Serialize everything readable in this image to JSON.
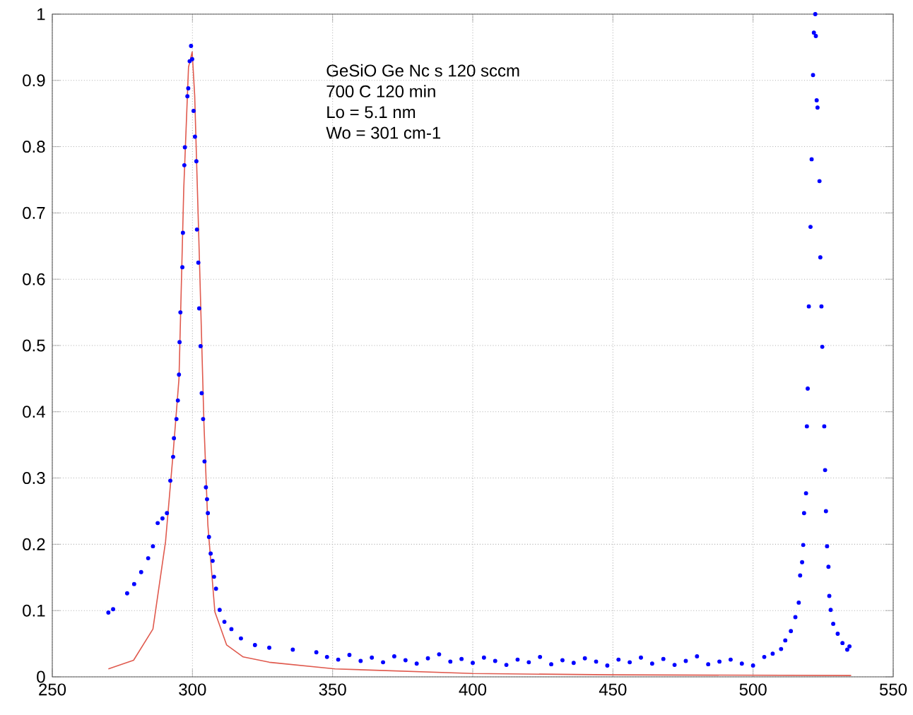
{
  "chart_data": {
    "type": "scatter",
    "annotations": [
      "GeSiO Ge Nc s 120 sccm",
      "700 C 120 min",
      "Lo = 5.1 nm",
      "Wo = 301 cm-1"
    ],
    "series": [
      {
        "color": "#0000ff",
        "marker": "circle",
        "x": [
          270.0,
          271.7,
          276.7,
          279.2,
          281.7,
          284.2,
          285.9,
          287.6,
          289.3,
          290.9,
          292.1,
          293.1,
          293.4,
          294.3,
          294.8,
          295.2,
          295.4,
          295.7,
          296.4,
          296.6,
          297.1,
          297.3,
          298.2,
          298.5,
          299.0,
          299.5,
          299.9,
          300.4,
          300.9,
          301.4,
          301.6,
          302.1,
          302.4,
          302.9,
          303.3,
          303.8,
          304.3,
          304.8,
          305.2,
          305.5,
          305.9,
          306.5,
          307.2,
          307.7,
          308.4,
          309.7,
          311.4,
          313.9,
          317.3,
          322.3,
          327.4,
          335.8,
          344.2,
          348,
          352,
          356,
          360,
          364,
          368,
          372,
          376,
          380,
          384,
          388,
          392,
          396,
          400,
          404,
          408,
          412,
          416,
          420,
          424,
          428,
          432,
          436,
          440,
          444,
          448,
          452,
          456,
          460,
          464,
          468,
          472,
          476,
          480,
          484,
          488,
          492,
          496,
          500,
          504,
          507,
          510,
          511.5,
          513.5,
          515.1,
          516.3,
          516.8,
          517.5,
          517.9,
          518.2,
          518.9,
          519.2,
          519.5,
          519.9,
          520.5,
          520.9,
          521.4,
          521.7,
          522.2,
          522.4,
          522.7,
          523.0,
          523.7,
          524.0,
          524.4,
          524.7,
          525.4,
          525.7,
          526.0,
          526.4,
          526.9,
          527.2,
          527.7,
          528.6,
          530.2,
          531.9,
          533.6,
          534.4
        ],
        "values": [
          0.097,
          0.102,
          0.126,
          0.14,
          0.158,
          0.179,
          0.197,
          0.232,
          0.239,
          0.247,
          0.296,
          0.332,
          0.36,
          0.389,
          0.417,
          0.456,
          0.505,
          0.55,
          0.618,
          0.67,
          0.772,
          0.799,
          0.876,
          0.888,
          0.929,
          0.952,
          0.932,
          0.854,
          0.815,
          0.778,
          0.675,
          0.625,
          0.556,
          0.499,
          0.428,
          0.389,
          0.325,
          0.286,
          0.268,
          0.247,
          0.211,
          0.186,
          0.175,
          0.151,
          0.133,
          0.101,
          0.083,
          0.072,
          0.058,
          0.048,
          0.044,
          0.041,
          0.037,
          0.03,
          0.026,
          0.033,
          0.024,
          0.029,
          0.022,
          0.031,
          0.025,
          0.02,
          0.028,
          0.034,
          0.023,
          0.027,
          0.021,
          0.029,
          0.024,
          0.018,
          0.026,
          0.022,
          0.03,
          0.019,
          0.025,
          0.021,
          0.028,
          0.023,
          0.017,
          0.026,
          0.022,
          0.029,
          0.02,
          0.027,
          0.018,
          0.024,
          0.031,
          0.019,
          0.023,
          0.026,
          0.02,
          0.017,
          0.03,
          0.035,
          0.042,
          0.055,
          0.069,
          0.09,
          0.112,
          0.153,
          0.173,
          0.199,
          0.247,
          0.277,
          0.378,
          0.435,
          0.559,
          0.679,
          0.781,
          0.908,
          0.972,
          1.0,
          0.967,
          0.87,
          0.859,
          0.748,
          0.633,
          0.559,
          0.498,
          0.378,
          0.312,
          0.25,
          0.197,
          0.166,
          0.122,
          0.101,
          0.08,
          0.065,
          0.051,
          0.041,
          0.046
        ]
      },
      {
        "type": "line",
        "color": "#e05a4e",
        "x": [
          270,
          279,
          285.9,
          290.4,
          293.1,
          295.2,
          296.9,
          298.6,
          299.9,
          300.8,
          302.6,
          304.1,
          305.5,
          308.0,
          312.2,
          318.1,
          327.4,
          350.9,
          400,
          450,
          535
        ],
        "values": [
          0.012,
          0.025,
          0.072,
          0.204,
          0.337,
          0.45,
          0.737,
          0.92,
          0.943,
          0.877,
          0.613,
          0.382,
          0.229,
          0.098,
          0.048,
          0.03,
          0.022,
          0.012,
          0.005,
          0.003,
          0.002
        ]
      }
    ],
    "xlim": [
      250,
      550
    ],
    "ylim": [
      0,
      1
    ],
    "xticks": [
      250,
      300,
      350,
      400,
      450,
      500,
      550
    ],
    "yticks": [
      0,
      0.1,
      0.2,
      0.3,
      0.4,
      0.5,
      0.6,
      0.7,
      0.8,
      0.9,
      1
    ],
    "grid": true
  }
}
